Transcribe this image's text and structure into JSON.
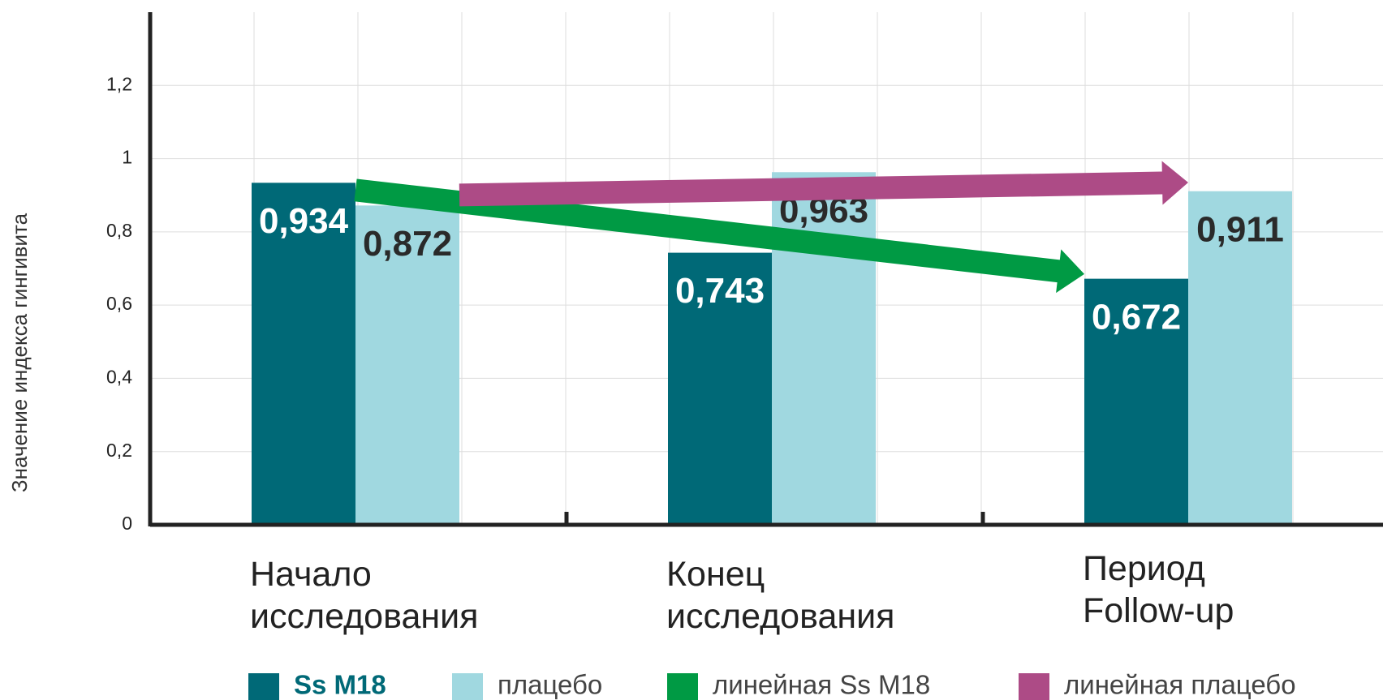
{
  "chart_data": {
    "type": "bar",
    "y_label": "Значение индекса гингивита",
    "categories": [
      "Начало\nисследования",
      "Конец\nисследования",
      "Период\nFollow-up"
    ],
    "series": [
      {
        "name": "Ss M18",
        "color": "#006977",
        "values": [
          0.934,
          0.743,
          0.672
        ],
        "value_labels": [
          "0,934",
          "0,743",
          "0,672"
        ],
        "trendline": {
          "name": "линейная Ss M18",
          "color": "#009a44"
        }
      },
      {
        "name": "плацебо",
        "color": "#a0d8e0",
        "values": [
          0.872,
          0.963,
          0.911
        ],
        "value_labels": [
          "0,872",
          "0,963",
          "0,911"
        ],
        "trendline": {
          "name": "линейная плацебо",
          "color": "#ad4b86"
        }
      }
    ],
    "ylim": [
      0,
      1.4
    ],
    "yticks": [
      0,
      {
        "value": 0.2,
        "label": "0,2"
      },
      {
        "value": 0.4,
        "label": "0,4"
      },
      {
        "value": 0.6,
        "label": "0,6"
      },
      {
        "value": 0.8,
        "label": "0,8"
      },
      1,
      {
        "value": 1.2,
        "label": "1,2"
      }
    ],
    "grid": true
  }
}
